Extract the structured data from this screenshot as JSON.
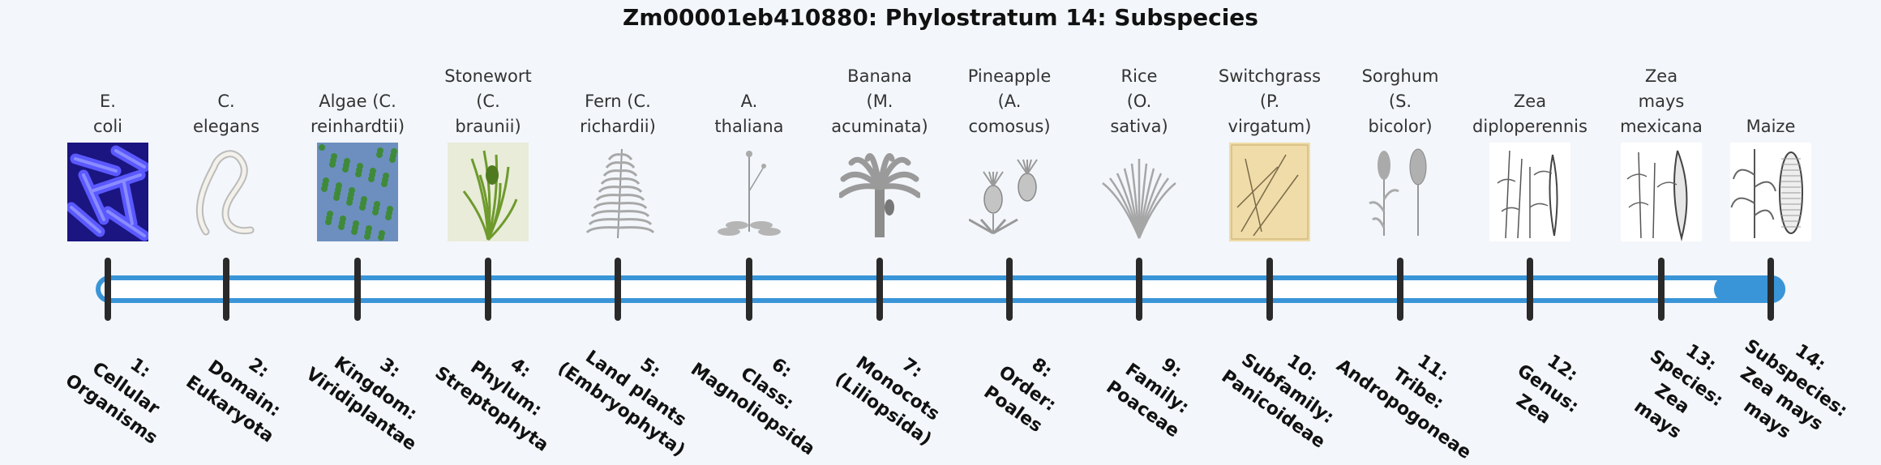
{
  "title": "Zm00001eb410880: Phylostratum 14: Subspecies",
  "colors": {
    "accent": "#3a95d8",
    "tick": "#2a2a2a",
    "background": "#f3f6fa"
  },
  "strata": [
    {
      "organism": [
        "E.",
        "coli"
      ],
      "image": "e-coli-image",
      "label": [
        "1:",
        "Cellular",
        "Organisms"
      ]
    },
    {
      "organism": [
        "C.",
        "elegans"
      ],
      "image": "c-elegans-image",
      "label": [
        "2:",
        "Domain:",
        "Eukaryota"
      ]
    },
    {
      "organism": [
        "Algae (C.",
        "reinhardtii)"
      ],
      "image": "algae-image",
      "label": [
        "3:",
        "Kingdom:",
        "Viridiplantae"
      ]
    },
    {
      "organism": [
        "Stonewort",
        "(C.",
        "braunii)"
      ],
      "image": "stonewort-image",
      "label": [
        "4:",
        "Phylum:",
        "Streptophyta"
      ]
    },
    {
      "organism": [
        "Fern (C.",
        "richardii)"
      ],
      "image": "fern-image",
      "label": [
        "5:",
        "Land plants",
        "(Embryophyta)"
      ]
    },
    {
      "organism": [
        "A.",
        "thaliana"
      ],
      "image": "arabidopsis-image",
      "label": [
        "6:",
        "Class:",
        "Magnoliopsida"
      ]
    },
    {
      "organism": [
        "Banana",
        "(M.",
        "acuminata)"
      ],
      "image": "banana-image",
      "label": [
        "7:",
        "Monocots",
        "(Liliopsida)"
      ]
    },
    {
      "organism": [
        "Pineapple",
        "(A.",
        "comosus)"
      ],
      "image": "pineapple-image",
      "label": [
        "8:",
        "Order:",
        "Poales"
      ]
    },
    {
      "organism": [
        "Rice",
        "(O.",
        "sativa)"
      ],
      "image": "rice-image",
      "label": [
        "9:",
        "Family:",
        "Poaceae"
      ]
    },
    {
      "organism": [
        "Switchgrass",
        "(P.",
        "virgatum)"
      ],
      "image": "switchgrass-image",
      "label": [
        "10:",
        "Subfamily:",
        "Panicoideae"
      ]
    },
    {
      "organism": [
        "Sorghum",
        "(S.",
        "bicolor)"
      ],
      "image": "sorghum-image",
      "label": [
        "11:",
        "Tribe:",
        "Andropogoneae"
      ]
    },
    {
      "organism": [
        "Zea",
        "diploperennis"
      ],
      "image": "zea-diploperennis-image",
      "label": [
        "12:",
        "Genus:",
        "Zea"
      ]
    },
    {
      "organism": [
        "Zea",
        "mays",
        "mexicana"
      ],
      "image": "zea-mays-mexicana-image",
      "label": [
        "13:",
        "Species:",
        "Zea",
        "mays"
      ]
    },
    {
      "organism": [
        "Maize"
      ],
      "image": "maize-image",
      "label": [
        "14:",
        "Subspecies:",
        "Zea mays",
        "mays"
      ]
    }
  ],
  "current_stratum": 14,
  "total_strata": 14
}
